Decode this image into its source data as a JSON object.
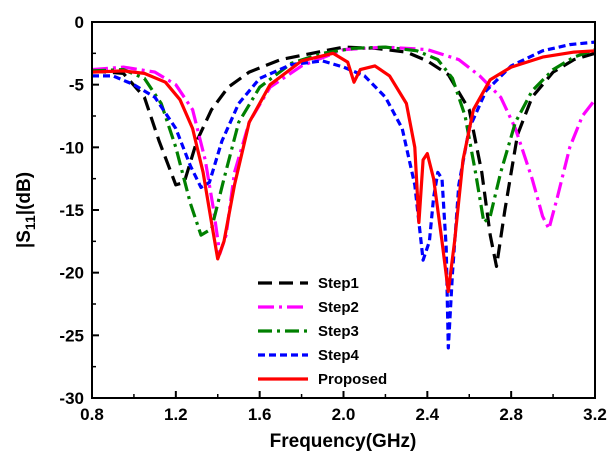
{
  "chart_data": {
    "type": "line",
    "xlabel": "Frequency(GHz)",
    "ylabel_main": "|S",
    "ylabel_sub": "11",
    "ylabel_tail": "|(dB)",
    "xlim": [
      0.8,
      3.2
    ],
    "ylim": [
      -30,
      0
    ],
    "xticks": [
      "0.8",
      "1.2",
      "1.6",
      "2.0",
      "2.4",
      "2.8",
      "3.2"
    ],
    "yticks": [
      "0",
      "-5",
      "-10",
      "-15",
      "-20",
      "-25",
      "-30"
    ],
    "grid": false,
    "legend_position": "bottom-center",
    "series": [
      {
        "name": "Step1",
        "color": "#000000",
        "dash": "14,7",
        "points": [
          [
            0.8,
            -3.9
          ],
          [
            0.95,
            -4.1
          ],
          [
            1.05,
            -6.0
          ],
          [
            1.12,
            -9.5
          ],
          [
            1.2,
            -13.0
          ],
          [
            1.24,
            -12.8
          ],
          [
            1.3,
            -9.5
          ],
          [
            1.37,
            -7.0
          ],
          [
            1.45,
            -5.2
          ],
          [
            1.55,
            -4.0
          ],
          [
            1.7,
            -3.0
          ],
          [
            1.85,
            -2.5
          ],
          [
            2.0,
            -2.0
          ],
          [
            2.15,
            -2.1
          ],
          [
            2.3,
            -2.4
          ],
          [
            2.4,
            -3.1
          ],
          [
            2.5,
            -4.2
          ],
          [
            2.6,
            -7.0
          ],
          [
            2.66,
            -12.0
          ],
          [
            2.7,
            -17.0
          ],
          [
            2.73,
            -19.5
          ],
          [
            2.77,
            -15.0
          ],
          [
            2.83,
            -9.0
          ],
          [
            2.9,
            -6.0
          ],
          [
            3.0,
            -4.0
          ],
          [
            3.1,
            -3.0
          ],
          [
            3.2,
            -2.5
          ]
        ]
      },
      {
        "name": "Step2",
        "color": "#ff00ff",
        "dash": "16,5,3,5",
        "points": [
          [
            0.8,
            -3.8
          ],
          [
            0.95,
            -3.6
          ],
          [
            1.1,
            -4.0
          ],
          [
            1.2,
            -5.0
          ],
          [
            1.28,
            -7.0
          ],
          [
            1.34,
            -11.0
          ],
          [
            1.38,
            -15.0
          ],
          [
            1.41,
            -18.5
          ],
          [
            1.44,
            -17.0
          ],
          [
            1.48,
            -12.0
          ],
          [
            1.55,
            -8.0
          ],
          [
            1.65,
            -5.2
          ],
          [
            1.8,
            -3.5
          ],
          [
            2.0,
            -2.2
          ],
          [
            2.2,
            -2.0
          ],
          [
            2.4,
            -2.2
          ],
          [
            2.55,
            -3.0
          ],
          [
            2.65,
            -4.3
          ],
          [
            2.75,
            -6.0
          ],
          [
            2.82,
            -8.5
          ],
          [
            2.9,
            -12.5
          ],
          [
            2.95,
            -15.5
          ],
          [
            2.98,
            -16.5
          ],
          [
            3.02,
            -14.0
          ],
          [
            3.08,
            -10.0
          ],
          [
            3.14,
            -7.5
          ],
          [
            3.2,
            -6.2
          ]
        ]
      },
      {
        "name": "Step3",
        "color": "#008000",
        "dash": "14,5,3,5",
        "points": [
          [
            0.8,
            -3.9
          ],
          [
            0.95,
            -3.8
          ],
          [
            1.05,
            -4.5
          ],
          [
            1.13,
            -6.5
          ],
          [
            1.2,
            -10.0
          ],
          [
            1.27,
            -14.5
          ],
          [
            1.32,
            -17.0
          ],
          [
            1.37,
            -16.5
          ],
          [
            1.43,
            -12.5
          ],
          [
            1.5,
            -8.0
          ],
          [
            1.6,
            -5.2
          ],
          [
            1.75,
            -3.3
          ],
          [
            1.9,
            -2.5
          ],
          [
            2.05,
            -2.1
          ],
          [
            2.2,
            -2.0
          ],
          [
            2.35,
            -2.3
          ],
          [
            2.45,
            -3.0
          ],
          [
            2.52,
            -4.5
          ],
          [
            2.58,
            -7.5
          ],
          [
            2.63,
            -12.0
          ],
          [
            2.67,
            -16.0
          ],
          [
            2.7,
            -15.5
          ],
          [
            2.75,
            -12.0
          ],
          [
            2.82,
            -8.0
          ],
          [
            2.9,
            -5.5
          ],
          [
            3.0,
            -3.8
          ],
          [
            3.1,
            -2.8
          ],
          [
            3.2,
            -2.2
          ]
        ]
      },
      {
        "name": "Step4",
        "color": "#0000ff",
        "dash": "7,4",
        "points": [
          [
            0.8,
            -4.3
          ],
          [
            0.9,
            -4.3
          ],
          [
            1.0,
            -5.0
          ],
          [
            1.1,
            -6.0
          ],
          [
            1.2,
            -8.5
          ],
          [
            1.27,
            -11.5
          ],
          [
            1.32,
            -13.2
          ],
          [
            1.36,
            -12.8
          ],
          [
            1.42,
            -9.5
          ],
          [
            1.5,
            -6.5
          ],
          [
            1.6,
            -4.5
          ],
          [
            1.75,
            -3.4
          ],
          [
            1.9,
            -3.1
          ],
          [
            2.0,
            -3.6
          ],
          [
            2.1,
            -4.3
          ],
          [
            2.2,
            -6.0
          ],
          [
            2.28,
            -8.5
          ],
          [
            2.34,
            -13.0
          ],
          [
            2.38,
            -19.0
          ],
          [
            2.41,
            -17.5
          ],
          [
            2.43,
            -14.0
          ],
          [
            2.45,
            -12.0
          ],
          [
            2.47,
            -12.5
          ],
          [
            2.49,
            -18.0
          ],
          [
            2.5,
            -26.0
          ],
          [
            2.52,
            -20.0
          ],
          [
            2.55,
            -13.0
          ],
          [
            2.6,
            -8.5
          ],
          [
            2.68,
            -5.5
          ],
          [
            2.8,
            -3.5
          ],
          [
            2.95,
            -2.3
          ],
          [
            3.08,
            -1.8
          ],
          [
            3.2,
            -1.6
          ]
        ]
      },
      {
        "name": "Proposed",
        "color": "#ff0000",
        "dash": "",
        "points": [
          [
            0.8,
            -4.0
          ],
          [
            0.95,
            -3.9
          ],
          [
            1.05,
            -4.1
          ],
          [
            1.15,
            -4.8
          ],
          [
            1.22,
            -6.2
          ],
          [
            1.28,
            -8.5
          ],
          [
            1.33,
            -12.0
          ],
          [
            1.37,
            -16.0
          ],
          [
            1.4,
            -18.9
          ],
          [
            1.43,
            -17.5
          ],
          [
            1.48,
            -13.0
          ],
          [
            1.55,
            -8.0
          ],
          [
            1.65,
            -5.0
          ],
          [
            1.8,
            -3.1
          ],
          [
            1.95,
            -2.5
          ],
          [
            2.02,
            -3.2
          ],
          [
            2.05,
            -4.8
          ],
          [
            2.08,
            -3.8
          ],
          [
            2.15,
            -3.5
          ],
          [
            2.22,
            -4.3
          ],
          [
            2.3,
            -6.5
          ],
          [
            2.34,
            -10.0
          ],
          [
            2.36,
            -16.0
          ],
          [
            2.38,
            -11.0
          ],
          [
            2.4,
            -10.5
          ],
          [
            2.43,
            -12.5
          ],
          [
            2.47,
            -17.5
          ],
          [
            2.5,
            -21.5
          ],
          [
            2.53,
            -17.5
          ],
          [
            2.57,
            -11.0
          ],
          [
            2.62,
            -7.0
          ],
          [
            2.7,
            -4.6
          ],
          [
            2.8,
            -3.6
          ],
          [
            2.95,
            -2.8
          ],
          [
            3.1,
            -2.4
          ],
          [
            3.2,
            -2.3
          ]
        ]
      }
    ]
  }
}
